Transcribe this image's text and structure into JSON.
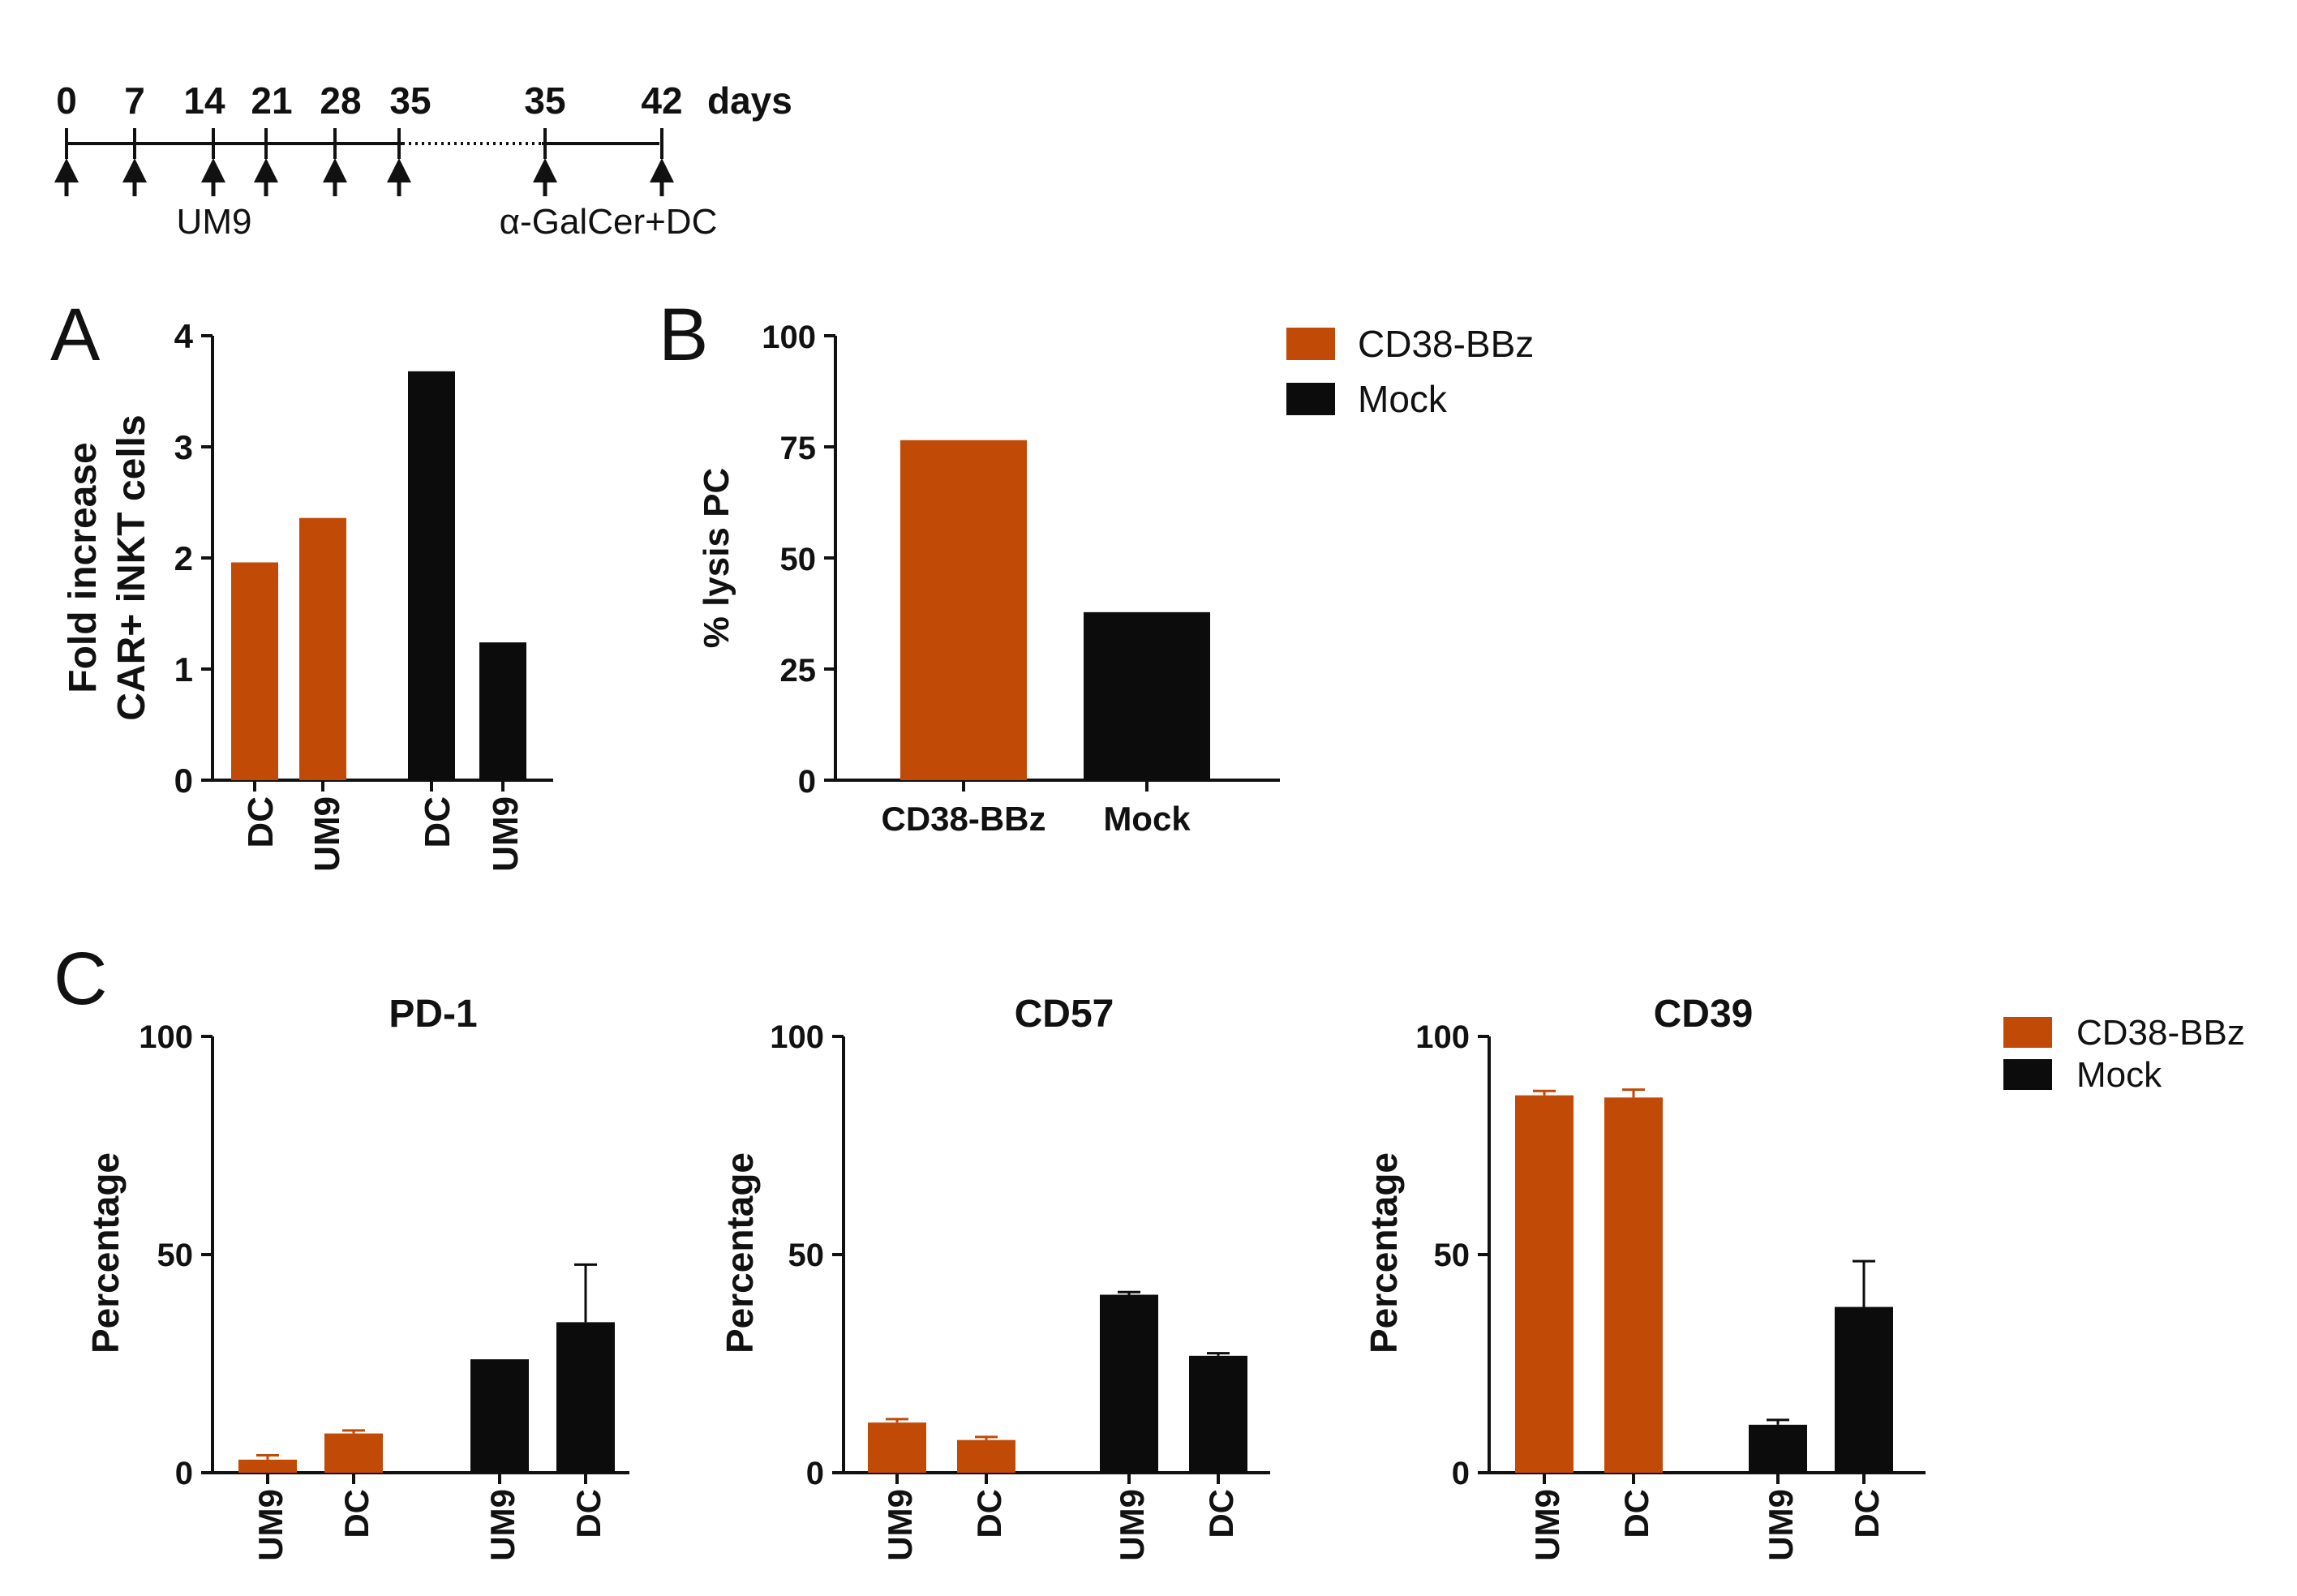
{
  "colors": {
    "car": "#C04A06",
    "mock": "#0C0C0C",
    "axis": "#111111"
  },
  "timeline": {
    "day_labels": [
      "0",
      "7",
      "14",
      "21",
      "28",
      "35",
      "35",
      "42"
    ],
    "unit_label": "days",
    "label_um9": "UM9",
    "label_galcer": "α-GalCer+DC"
  },
  "panel_letters": {
    "a": "A",
    "b": "B",
    "c": "C"
  },
  "legend_top": {
    "items": [
      {
        "name": "CD38-BBz",
        "color": "#C04A06"
      },
      {
        "name": "Mock",
        "color": "#0C0C0C"
      }
    ]
  },
  "legend_c": {
    "items": [
      {
        "name": "CD38-BBz",
        "color": "#C04A06"
      },
      {
        "name": "Mock",
        "color": "#0C0C0C"
      }
    ]
  },
  "chart_data": [
    {
      "id": "A",
      "type": "bar",
      "title": "",
      "ylabel_line1": "Fold increase",
      "ylabel_line2": "CAR+ iNKT cells",
      "ylim": [
        0,
        4
      ],
      "yticks": [
        "0",
        "1",
        "2",
        "3",
        "4"
      ],
      "categories": [
        "DC",
        "UM9",
        "DC",
        "UM9"
      ],
      "values": [
        1.96,
        2.36,
        3.68,
        1.24
      ],
      "colors": [
        "#C04A06",
        "#C04A06",
        "#0C0C0C",
        "#0C0C0C"
      ]
    },
    {
      "id": "B",
      "type": "bar",
      "title": "",
      "ylabel": "% lysis PC",
      "ylim": [
        0,
        100
      ],
      "yticks": [
        "0",
        "25",
        "50",
        "75",
        "100"
      ],
      "categories": [
        "CD38-BBz",
        "Mock"
      ],
      "values": [
        76.5,
        37.8
      ],
      "colors": [
        "#C04A06",
        "#0C0C0C"
      ]
    },
    {
      "id": "C1",
      "type": "bar",
      "title": "PD-1",
      "ylabel": "Percentage",
      "ylim": [
        0,
        100
      ],
      "yticks": [
        "0",
        "50",
        "100"
      ],
      "categories": [
        "UM9",
        "DC",
        "UM9",
        "DC"
      ],
      "values": [
        3,
        9,
        26,
        34.5
      ],
      "errors": [
        1,
        0.7,
        0,
        13.2
      ],
      "colors": [
        "#C04A06",
        "#C04A06",
        "#0C0C0C",
        "#0C0C0C"
      ]
    },
    {
      "id": "C2",
      "type": "bar",
      "title": "CD57",
      "ylabel": "Percentage",
      "ylim": [
        0,
        100
      ],
      "yticks": [
        "0",
        "50",
        "100"
      ],
      "categories": [
        "UM9",
        "DC",
        "UM9",
        "DC"
      ],
      "values": [
        11.5,
        7.5,
        40.8,
        26.8
      ],
      "errors": [
        0.8,
        0.7,
        0.6,
        0.6
      ],
      "colors": [
        "#C04A06",
        "#C04A06",
        "#0C0C0C",
        "#0C0C0C"
      ]
    },
    {
      "id": "C3",
      "type": "bar",
      "title": "CD39",
      "ylabel": "Percentage",
      "ylim": [
        0,
        100
      ],
      "yticks": [
        "0",
        "50",
        "100"
      ],
      "categories": [
        "UM9",
        "DC",
        "UM9",
        "DC"
      ],
      "values": [
        86.5,
        86,
        11,
        38
      ],
      "errors": [
        1,
        1.8,
        1.1,
        10.5
      ],
      "colors": [
        "#C04A06",
        "#C04A06",
        "#0C0C0C",
        "#0C0C0C"
      ]
    }
  ]
}
